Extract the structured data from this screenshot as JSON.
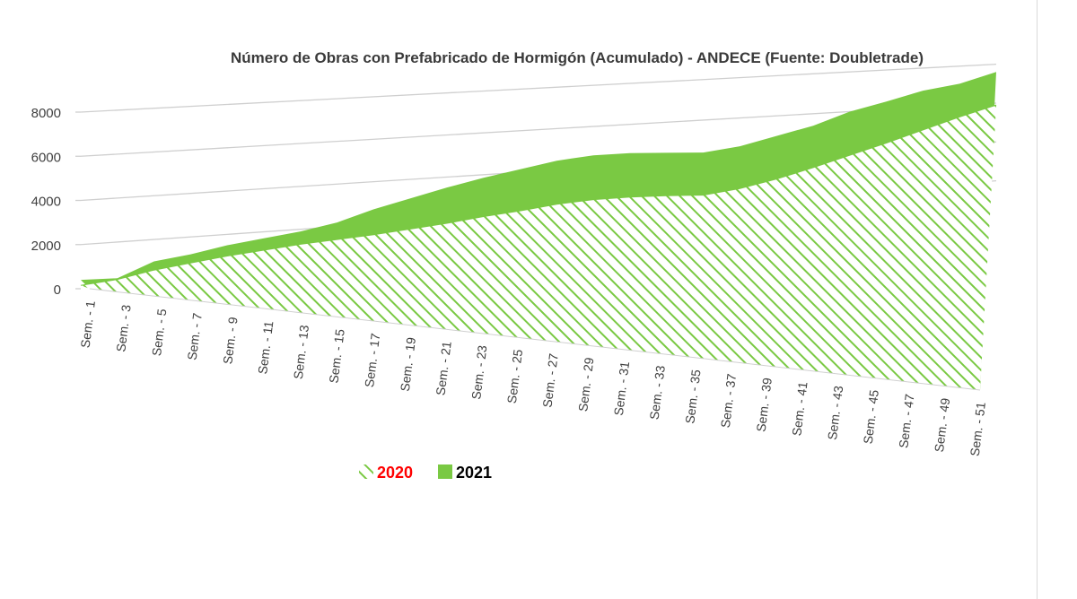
{
  "chart_data": {
    "type": "area",
    "title": "Número de Obras con Prefabricado de Hormigón (Acumulado) - ANDECE (Fuente: Doubletrade)",
    "xlabel": "",
    "ylabel": "",
    "ylim": [
      0,
      8000
    ],
    "y_ticks": [
      0,
      2000,
      4000,
      6000,
      8000
    ],
    "grid": true,
    "legend_position": "bottom-left",
    "categories": [
      "Sem. - 1",
      "Sem. - 3",
      "Sem. - 5",
      "Sem. - 7",
      "Sem. - 9",
      "Sem. - 11",
      "Sem. - 13",
      "Sem. - 15",
      "Sem. - 17",
      "Sem. - 19",
      "Sem. - 21",
      "Sem. - 23",
      "Sem. - 25",
      "Sem. - 27",
      "Sem. - 29",
      "Sem. - 31",
      "Sem. - 33",
      "Sem. - 35",
      "Sem. - 37",
      "Sem. - 39",
      "Sem. - 41",
      "Sem. - 43",
      "Sem. - 45",
      "Sem. - 47",
      "Sem. - 49",
      "Sem. - 51"
    ],
    "series": [
      {
        "name": "2020",
        "legend_color": "#ff0000",
        "fill": "hatched-green",
        "values": [
          150,
          300,
          600,
          800,
          1000,
          1150,
          1300,
          1400,
          1500,
          1650,
          1800,
          2000,
          2150,
          2350,
          2450,
          2450,
          2400,
          2300,
          2500,
          2850,
          3300,
          3800,
          4300,
          4850,
          5400,
          5900
        ]
      },
      {
        "name": "2021",
        "legend_color": "#000000",
        "fill": "#7ac943",
        "values": [
          400,
          350,
          1000,
          1200,
          1500,
          1700,
          1900,
          2200,
          2700,
          3100,
          3500,
          3850,
          4150,
          4450,
          4600,
          4600,
          4500,
          4400,
          4600,
          5000,
          5400,
          6000,
          6400,
          6850,
          7100,
          7600
        ]
      }
    ]
  }
}
